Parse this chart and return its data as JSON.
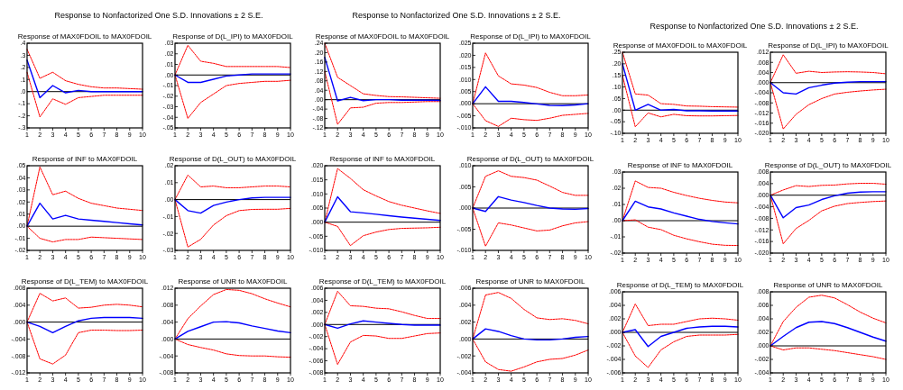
{
  "chart_data": [
    {
      "type": "line",
      "title": "Response of MAX0FDOIL to MAX0FDOIL",
      "annotations": [
        "Response to Nonfactorized One S.D. Innovations ± 2 S.E."
      ],
      "x": [
        1,
        2,
        3,
        4,
        5,
        6,
        7,
        8,
        9,
        10
      ],
      "xlim": [
        1,
        10
      ],
      "xticks": [
        1,
        2,
        3,
        4,
        5,
        6,
        7,
        8,
        9,
        10
      ],
      "ylim": [
        -0.3,
        0.4
      ],
      "yticks": [
        {
          "value": -0.3,
          "label": "-.3"
        },
        {
          "value": -0.2,
          "label": "-.2"
        },
        {
          "value": -0.1,
          "label": "-.1"
        },
        {
          "value": 0,
          "label": ".0"
        },
        {
          "value": 0.1,
          "label": ".1"
        },
        {
          "value": 0.2,
          "label": ".2"
        },
        {
          "value": 0.3,
          "label": ".3"
        },
        {
          "value": 0.4,
          "label": ".4"
        }
      ],
      "ref_lines": [
        {
          "axis": "y",
          "value": 0,
          "color": "#000000"
        }
      ],
      "series": [
        {
          "color": "#0000ff",
          "line_style": "solid",
          "values": [
            0.26,
            -0.05,
            0.05,
            -0.01,
            0.01,
            0,
            0,
            0,
            0,
            0
          ]
        },
        {
          "color": "#ff0000",
          "line_style": "dashed",
          "values": [
            0.35,
            0.11,
            0.16,
            0.09,
            0.06,
            0.04,
            0.03,
            0.03,
            0.025,
            0.02
          ]
        },
        {
          "color": "#ff0000",
          "line_style": "dashed",
          "values": [
            0.16,
            -0.21,
            -0.06,
            -0.105,
            -0.05,
            -0.04,
            -0.03,
            -0.03,
            -0.03,
            -0.03
          ]
        }
      ]
    },
    {
      "type": "line",
      "title": "Response of D(L_IPI) to MAX0FDOIL",
      "x": [
        1,
        2,
        3,
        4,
        5,
        6,
        7,
        8,
        9,
        10
      ],
      "xlim": [
        1,
        10
      ],
      "xticks": [
        1,
        2,
        3,
        4,
        5,
        6,
        7,
        8,
        9,
        10
      ],
      "ylim": [
        -0.05,
        0.03
      ],
      "yticks": [
        {
          "value": -0.05,
          "label": "-.05"
        },
        {
          "value": -0.04,
          "label": "-.04"
        },
        {
          "value": -0.03,
          "label": "-.03"
        },
        {
          "value": -0.02,
          "label": "-.02"
        },
        {
          "value": -0.01,
          "label": "-.01"
        },
        {
          "value": 0,
          "label": ".00"
        },
        {
          "value": 0.01,
          "label": ".01"
        },
        {
          "value": 0.02,
          "label": ".02"
        },
        {
          "value": 0.03,
          "label": ".03"
        }
      ],
      "ref_lines": [
        {
          "axis": "y",
          "value": 0,
          "color": "#000000"
        }
      ],
      "series": [
        {
          "color": "#0000ff",
          "line_style": "solid",
          "values": [
            0,
            -0.007,
            -0.007,
            -0.004,
            -0.001,
            0,
            0.001,
            0.001,
            0.001,
            0.001
          ]
        },
        {
          "color": "#ff0000",
          "line_style": "dashed",
          "values": [
            0,
            0.028,
            0.013,
            0.011,
            0.008,
            0.008,
            0.008,
            0.008,
            0.008,
            0.007
          ]
        },
        {
          "color": "#ff0000",
          "line_style": "dashed",
          "values": [
            0,
            -0.041,
            -0.026,
            -0.018,
            -0.01,
            -0.008,
            -0.007,
            -0.006,
            -0.006,
            -0.005
          ]
        }
      ]
    },
    {
      "type": "line",
      "title": "Response of INF to MAX0FDOIL",
      "x": [
        1,
        2,
        3,
        4,
        5,
        6,
        7,
        8,
        9,
        10
      ],
      "xlim": [
        1,
        10
      ],
      "xticks": [
        1,
        2,
        3,
        4,
        5,
        6,
        7,
        8,
        9,
        10
      ],
      "ylim": [
        -0.02,
        0.05
      ],
      "yticks": [
        {
          "value": -0.02,
          "label": "-.02"
        },
        {
          "value": -0.01,
          "label": "-.01"
        },
        {
          "value": 0,
          "label": ".00"
        },
        {
          "value": 0.01,
          "label": ".01"
        },
        {
          "value": 0.02,
          "label": ".02"
        },
        {
          "value": 0.03,
          "label": ".03"
        },
        {
          "value": 0.04,
          "label": ".04"
        },
        {
          "value": 0.05,
          "label": ".05"
        }
      ],
      "ref_lines": [
        {
          "axis": "y",
          "value": 0,
          "color": "#000000"
        }
      ],
      "series": [
        {
          "color": "#0000ff",
          "line_style": "solid",
          "values": [
            0,
            0.019,
            0.006,
            0.009,
            0.006,
            0.005,
            0.004,
            0.003,
            0.002,
            0.001
          ]
        },
        {
          "color": "#ff0000",
          "line_style": "dashed",
          "values": [
            0,
            0.049,
            0.026,
            0.029,
            0.023,
            0.019,
            0.017,
            0.015,
            0.014,
            0.013
          ]
        },
        {
          "color": "#ff0000",
          "line_style": "dashed",
          "values": [
            0,
            -0.01,
            -0.013,
            -0.011,
            -0.011,
            -0.009,
            -0.0095,
            -0.01,
            -0.0105,
            -0.011
          ]
        }
      ]
    },
    {
      "type": "line",
      "title": "Response of D(L_OUT) to MAX0FDOIL",
      "x": [
        1,
        2,
        3,
        4,
        5,
        6,
        7,
        8,
        9,
        10
      ],
      "xlim": [
        1,
        10
      ],
      "xticks": [
        1,
        2,
        3,
        4,
        5,
        6,
        7,
        8,
        9,
        10
      ],
      "ylim": [
        -0.03,
        0.02
      ],
      "yticks": [
        {
          "value": -0.03,
          "label": "-.03"
        },
        {
          "value": -0.02,
          "label": "-.02"
        },
        {
          "value": -0.01,
          "label": "-.01"
        },
        {
          "value": 0,
          "label": ".00"
        },
        {
          "value": 0.01,
          "label": ".01"
        },
        {
          "value": 0.02,
          "label": ".02"
        }
      ],
      "ref_lines": [
        {
          "axis": "y",
          "value": 0,
          "color": "#000000"
        }
      ],
      "series": [
        {
          "color": "#0000ff",
          "line_style": "solid",
          "values": [
            0,
            -0.0065,
            -0.008,
            -0.0035,
            -0.0015,
            0,
            0.001,
            0.0013,
            0.0013,
            0.0013
          ]
        },
        {
          "color": "#ff0000",
          "line_style": "dashed",
          "values": [
            0,
            0.0145,
            0.0075,
            0.008,
            0.007,
            0.007,
            0.0075,
            0.008,
            0.008,
            0.0075
          ]
        },
        {
          "color": "#ff0000",
          "line_style": "dashed",
          "values": [
            0,
            -0.028,
            -0.0235,
            -0.015,
            -0.0095,
            -0.0065,
            -0.0058,
            -0.0057,
            -0.0057,
            -0.0052
          ]
        }
      ]
    },
    {
      "type": "line",
      "title": "Response of D(L_TEM) to MAX0FDOIL",
      "x": [
        1,
        2,
        3,
        4,
        5,
        6,
        7,
        8,
        9,
        10
      ],
      "xlim": [
        1,
        10
      ],
      "xticks": [
        1,
        2,
        3,
        4,
        5,
        6,
        7,
        8,
        9,
        10
      ],
      "ylim": [
        -0.012,
        0.008
      ],
      "yticks": [
        {
          "value": -0.012,
          "label": "-.012"
        },
        {
          "value": -0.008,
          "label": "-.008"
        },
        {
          "value": -0.004,
          "label": "-.004"
        },
        {
          "value": 0,
          "label": ".000"
        },
        {
          "value": 0.004,
          "label": ".004"
        },
        {
          "value": 0.008,
          "label": ".008"
        }
      ],
      "ref_lines": [
        {
          "axis": "y",
          "value": 0,
          "color": "#000000"
        }
      ],
      "series": [
        {
          "color": "#0000ff",
          "line_style": "solid",
          "values": [
            0,
            -0.001,
            -0.0025,
            -0.001,
            0.0003,
            0.0009,
            0.0011,
            0.0011,
            0.0011,
            0.0009
          ]
        },
        {
          "color": "#ff0000",
          "line_style": "dashed",
          "values": [
            0,
            0.0068,
            0.005,
            0.0057,
            0.0033,
            0.0035,
            0.004,
            0.0042,
            0.004,
            0.0036
          ]
        },
        {
          "color": "#ff0000",
          "line_style": "dashed",
          "values": [
            0,
            -0.0087,
            -0.0099,
            -0.0078,
            -0.0025,
            -0.0019,
            -0.0019,
            -0.002,
            -0.002,
            -0.0019
          ]
        }
      ]
    },
    {
      "type": "line",
      "title": "Response of UNR to MAX0FDOIL",
      "x": [
        1,
        2,
        3,
        4,
        5,
        6,
        7,
        8,
        9,
        10
      ],
      "xlim": [
        1,
        10
      ],
      "xticks": [
        1,
        2,
        3,
        4,
        5,
        6,
        7,
        8,
        9,
        10
      ],
      "ylim": [
        -0.008,
        0.012
      ],
      "yticks": [
        {
          "value": -0.008,
          "label": "-.008"
        },
        {
          "value": -0.004,
          "label": "-.004"
        },
        {
          "value": 0,
          "label": ".000"
        },
        {
          "value": 0.004,
          "label": ".004"
        },
        {
          "value": 0.008,
          "label": ".008"
        },
        {
          "value": 0.012,
          "label": ".012"
        }
      ],
      "ref_lines": [
        {
          "axis": "y",
          "value": 0,
          "color": "#000000"
        }
      ],
      "series": [
        {
          "color": "#0000ff",
          "line_style": "solid",
          "values": [
            0,
            0.0018,
            0.0029,
            0.004,
            0.0041,
            0.0038,
            0.0031,
            0.0025,
            0.0019,
            0.0015
          ]
        },
        {
          "color": "#ff0000",
          "line_style": "dashed",
          "values": [
            0,
            0.0048,
            0.0078,
            0.0105,
            0.0117,
            0.0115,
            0.0107,
            0.0095,
            0.0085,
            0.0076
          ]
        },
        {
          "color": "#ff0000",
          "line_style": "dashed",
          "values": [
            0,
            -0.0013,
            -0.002,
            -0.0026,
            -0.0035,
            -0.0039,
            -0.004,
            -0.004,
            -0.0042,
            -0.0043
          ]
        }
      ]
    },
    {
      "type": "line",
      "title": "Response of MAX0FDOIL to MAX0FDOIL",
      "annotations": [
        "Response to Nonfactorized One S.D. Innovations ± 2 S.E."
      ],
      "x": [
        1,
        2,
        3,
        4,
        5,
        6,
        7,
        8,
        9,
        10
      ],
      "xlim": [
        1,
        10
      ],
      "xticks": [
        1,
        2,
        3,
        4,
        5,
        6,
        7,
        8,
        9,
        10
      ],
      "ylim": [
        -0.12,
        0.24
      ],
      "yticks": [
        {
          "value": -0.12,
          "label": "-.12"
        },
        {
          "value": -0.08,
          "label": "-.08"
        },
        {
          "value": -0.04,
          "label": "-.04"
        },
        {
          "value": 0,
          "label": ".00"
        },
        {
          "value": 0.04,
          "label": ".04"
        },
        {
          "value": 0.08,
          "label": ".08"
        },
        {
          "value": 0.12,
          "label": ".12"
        },
        {
          "value": 0.16,
          "label": ".16"
        },
        {
          "value": 0.2,
          "label": ".20"
        },
        {
          "value": 0.24,
          "label": ".24"
        }
      ],
      "ref_lines": [
        {
          "axis": "y",
          "value": 0,
          "color": "#000000"
        }
      ],
      "series": [
        {
          "color": "#0000ff",
          "line_style": "solid",
          "values": [
            0.18,
            -0.005,
            0.01,
            -0.004,
            0,
            0,
            -0.002,
            -0.002,
            -0.002,
            -0.003
          ]
        },
        {
          "color": "#ff0000",
          "line_style": "dashed",
          "values": [
            0.24,
            0.095,
            0.06,
            0.025,
            0.018,
            0.013,
            0.012,
            0.01,
            0.008,
            0.006
          ]
        },
        {
          "color": "#ff0000",
          "line_style": "dashed",
          "values": [
            0.12,
            -0.105,
            -0.035,
            -0.032,
            -0.015,
            -0.012,
            -0.012,
            -0.01,
            -0.008,
            -0.008
          ]
        }
      ]
    },
    {
      "type": "line",
      "title": "Response of D(L_IPI) to MAX0FDOIL",
      "x": [
        1,
        2,
        3,
        4,
        5,
        6,
        7,
        8,
        9,
        10
      ],
      "xlim": [
        1,
        10
      ],
      "xticks": [
        1,
        2,
        3,
        4,
        5,
        6,
        7,
        8,
        9,
        10
      ],
      "ylim": [
        -0.01,
        0.025
      ],
      "yticks": [
        {
          "value": -0.01,
          "label": "-.010"
        },
        {
          "value": -0.005,
          "label": "-.005"
        },
        {
          "value": 0,
          "label": ".000"
        },
        {
          "value": 0.005,
          "label": ".005"
        },
        {
          "value": 0.01,
          "label": ".010"
        },
        {
          "value": 0.015,
          "label": ".015"
        },
        {
          "value": 0.02,
          "label": ".020"
        },
        {
          "value": 0.025,
          "label": ".025"
        }
      ],
      "ref_lines": [
        {
          "axis": "y",
          "value": 0,
          "color": "#000000"
        }
      ],
      "series": [
        {
          "color": "#0000ff",
          "line_style": "solid",
          "values": [
            0,
            0.007,
            0.001,
            0.001,
            0.0005,
            -0.0001,
            -0.0007,
            -0.0008,
            -0.0005,
            0
          ]
        },
        {
          "color": "#ff0000",
          "line_style": "dashed",
          "values": [
            0,
            0.021,
            0.0115,
            0.0082,
            0.0077,
            0.0067,
            0.0047,
            0.0033,
            0.0033,
            0.0036
          ]
        },
        {
          "color": "#ff0000",
          "line_style": "dashed",
          "values": [
            0,
            -0.007,
            -0.0094,
            -0.006,
            -0.0066,
            -0.0069,
            -0.006,
            -0.0048,
            -0.0044,
            -0.004
          ]
        }
      ]
    },
    {
      "type": "line",
      "title": "Response of INF to MAX0FDOIL",
      "x": [
        1,
        2,
        3,
        4,
        5,
        6,
        7,
        8,
        9,
        10
      ],
      "xlim": [
        1,
        10
      ],
      "xticks": [
        1,
        2,
        3,
        4,
        5,
        6,
        7,
        8,
        9,
        10
      ],
      "ylim": [
        -0.01,
        0.02
      ],
      "yticks": [
        {
          "value": -0.01,
          "label": "-.010"
        },
        {
          "value": -0.005,
          "label": "-.005"
        },
        {
          "value": 0,
          "label": ".000"
        },
        {
          "value": 0.005,
          "label": ".005"
        },
        {
          "value": 0.01,
          "label": ".010"
        },
        {
          "value": 0.015,
          "label": ".015"
        },
        {
          "value": 0.02,
          "label": ".020"
        }
      ],
      "ref_lines": [
        {
          "axis": "y",
          "value": 0,
          "color": "#000000"
        }
      ],
      "series": [
        {
          "color": "#0000ff",
          "line_style": "solid",
          "values": [
            0,
            0.009,
            0.0037,
            0.0033,
            0.0028,
            0.0023,
            0.0018,
            0.0014,
            0.001,
            0.0006
          ]
        },
        {
          "color": "#ff0000",
          "line_style": "dashed",
          "values": [
            0,
            0.019,
            0.0155,
            0.0115,
            0.0093,
            0.0073,
            0.006,
            0.005,
            0.004,
            0.0031
          ]
        },
        {
          "color": "#ff0000",
          "line_style": "dashed",
          "values": [
            0,
            -0.0015,
            -0.0083,
            -0.0048,
            -0.0035,
            -0.0026,
            -0.0022,
            -0.0021,
            -0.002,
            -0.0018
          ]
        }
      ]
    },
    {
      "type": "line",
      "title": "Response of D(L_OUT) to MAX0FDOIL",
      "x": [
        1,
        2,
        3,
        4,
        5,
        6,
        7,
        8,
        9,
        10
      ],
      "xlim": [
        1,
        10
      ],
      "xticks": [
        1,
        2,
        3,
        4,
        5,
        6,
        7,
        8,
        9,
        10
      ],
      "ylim": [
        -0.01,
        0.01
      ],
      "yticks": [
        {
          "value": -0.01,
          "label": "-.010"
        },
        {
          "value": -0.005,
          "label": "-.005"
        },
        {
          "value": 0,
          "label": ".000"
        },
        {
          "value": 0.005,
          "label": ".005"
        },
        {
          "value": 0.01,
          "label": ".010"
        }
      ],
      "ref_lines": [
        {
          "axis": "y",
          "value": 0,
          "color": "#000000"
        }
      ],
      "series": [
        {
          "color": "#0000ff",
          "line_style": "solid",
          "values": [
            0,
            -0.0008,
            0.0027,
            0.0019,
            0.0013,
            0.0006,
            0,
            -0.0002,
            -0.0003,
            -0.0001
          ]
        },
        {
          "color": "#ff0000",
          "line_style": "dashed",
          "values": [
            0,
            0.0075,
            0.0088,
            0.0075,
            0.0072,
            0.0066,
            0.0052,
            0.0037,
            0.003,
            0.003
          ]
        },
        {
          "color": "#ff0000",
          "line_style": "dashed",
          "values": [
            0,
            -0.009,
            -0.0035,
            -0.004,
            -0.0047,
            -0.0054,
            -0.0052,
            -0.0042,
            -0.0035,
            -0.0032
          ]
        }
      ]
    },
    {
      "type": "line",
      "title": "Response of D(L_TEM) to MAX0FDOIL",
      "x": [
        1,
        2,
        3,
        4,
        5,
        6,
        7,
        8,
        9,
        10
      ],
      "xlim": [
        1,
        10
      ],
      "xticks": [
        1,
        2,
        3,
        4,
        5,
        6,
        7,
        8,
        9,
        10
      ],
      "ylim": [
        -0.008,
        0.006
      ],
      "yticks": [
        {
          "value": -0.008,
          "label": "-.008"
        },
        {
          "value": -0.006,
          "label": "-.006"
        },
        {
          "value": -0.004,
          "label": "-.004"
        },
        {
          "value": -0.002,
          "label": "-.002"
        },
        {
          "value": 0,
          "label": ".000"
        },
        {
          "value": 0.002,
          "label": ".002"
        },
        {
          "value": 0.004,
          "label": ".004"
        },
        {
          "value": 0.006,
          "label": ".006"
        }
      ],
      "ref_lines": [
        {
          "axis": "y",
          "value": 0,
          "color": "#000000"
        }
      ],
      "series": [
        {
          "color": "#0000ff",
          "line_style": "solid",
          "values": [
            0,
            -0.0006,
            0.0001,
            0.0006,
            0.0004,
            0.0002,
            0,
            -0.0001,
            -0.0001,
            -0.0001
          ]
        },
        {
          "color": "#ff0000",
          "line_style": "dashed",
          "values": [
            0,
            0.0055,
            0.0031,
            0.003,
            0.0027,
            0.0026,
            0.0021,
            0.0015,
            0.001,
            0.001
          ]
        },
        {
          "color": "#ff0000",
          "line_style": "dashed",
          "values": [
            0,
            -0.0066,
            -0.0029,
            -0.0018,
            -0.0019,
            -0.0023,
            -0.0023,
            -0.0019,
            -0.0015,
            -0.0014
          ]
        }
      ]
    },
    {
      "type": "line",
      "title": "Response of UNR to MAX0FDOIL",
      "x": [
        1,
        2,
        3,
        4,
        5,
        6,
        7,
        8,
        9,
        10
      ],
      "xlim": [
        1,
        10
      ],
      "xticks": [
        1,
        2,
        3,
        4,
        5,
        6,
        7,
        8,
        9,
        10
      ],
      "ylim": [
        -0.004,
        0.006
      ],
      "yticks": [
        {
          "value": -0.004,
          "label": "-.004"
        },
        {
          "value": -0.002,
          "label": "-.002"
        },
        {
          "value": 0,
          "label": ".000"
        },
        {
          "value": 0.002,
          "label": ".002"
        },
        {
          "value": 0.004,
          "label": ".004"
        },
        {
          "value": 0.006,
          "label": ".006"
        }
      ],
      "ref_lines": [
        {
          "axis": "y",
          "value": 0,
          "color": "#000000"
        }
      ],
      "series": [
        {
          "color": "#0000ff",
          "line_style": "solid",
          "values": [
            0,
            0.0012,
            0.0009,
            0.0004,
            0,
            -0.0001,
            -0.0001,
            0,
            0.0002,
            0.0003
          ]
        },
        {
          "color": "#ff0000",
          "line_style": "dashed",
          "values": [
            0,
            0.0052,
            0.0055,
            0.0048,
            0.0035,
            0.0025,
            0.0023,
            0.0024,
            0.0022,
            0.0018
          ]
        },
        {
          "color": "#ff0000",
          "line_style": "dashed",
          "values": [
            0,
            -0.0027,
            -0.0036,
            -0.0038,
            -0.0033,
            -0.0027,
            -0.0024,
            -0.0023,
            -0.0019,
            -0.0013
          ]
        }
      ]
    },
    {
      "type": "line",
      "title": "Response of MAX0FDOIL to MAX0FDOIL",
      "annotations": [
        "Response to Nonfactorized One S.D. Innovations ± 2 S.E."
      ],
      "x": [
        1,
        2,
        3,
        4,
        5,
        6,
        7,
        8,
        9,
        10
      ],
      "xlim": [
        1,
        10
      ],
      "xticks": [
        1,
        2,
        3,
        4,
        5,
        6,
        7,
        8,
        9,
        10
      ],
      "ylim": [
        -0.1,
        0.25
      ],
      "yticks": [
        {
          "value": -0.1,
          "label": "-.10"
        },
        {
          "value": -0.05,
          "label": "-.05"
        },
        {
          "value": 0,
          "label": ".00"
        },
        {
          "value": 0.05,
          "label": ".05"
        },
        {
          "value": 0.1,
          "label": ".10"
        },
        {
          "value": 0.15,
          "label": ".15"
        },
        {
          "value": 0.2,
          "label": ".20"
        },
        {
          "value": 0.25,
          "label": ".25"
        }
      ],
      "ref_lines": [
        {
          "axis": "y",
          "value": 0,
          "color": "#000000"
        }
      ],
      "series": [
        {
          "color": "#0000ff",
          "line_style": "solid",
          "values": [
            0.2,
            0,
            0.025,
            0,
            0.003,
            -0.003,
            -0.003,
            -0.004,
            -0.004,
            -0.004
          ]
        },
        {
          "color": "#ff0000",
          "line_style": "dashed",
          "values": [
            0.25,
            0.07,
            0.065,
            0.028,
            0.025,
            0.018,
            0.017,
            0.015,
            0.014,
            0.013
          ]
        },
        {
          "color": "#ff0000",
          "line_style": "dashed",
          "values": [
            0.15,
            -0.072,
            -0.012,
            -0.029,
            -0.018,
            -0.024,
            -0.025,
            -0.025,
            -0.024,
            -0.023
          ]
        }
      ]
    },
    {
      "type": "line",
      "title": "Response of D(L_IPI) to MAX0FDOIL",
      "x": [
        1,
        2,
        3,
        4,
        5,
        6,
        7,
        8,
        9,
        10
      ],
      "xlim": [
        1,
        10
      ],
      "xticks": [
        1,
        2,
        3,
        4,
        5,
        6,
        7,
        8,
        9,
        10
      ],
      "ylim": [
        -0.02,
        0.012
      ],
      "yticks": [
        {
          "value": -0.02,
          "label": "-.020"
        },
        {
          "value": -0.016,
          "label": "-.016"
        },
        {
          "value": -0.012,
          "label": "-.012"
        },
        {
          "value": -0.008,
          "label": "-.008"
        },
        {
          "value": -0.004,
          "label": "-.004"
        },
        {
          "value": 0,
          "label": ".000"
        },
        {
          "value": 0.004,
          "label": ".004"
        },
        {
          "value": 0.008,
          "label": ".008"
        },
        {
          "value": 0.012,
          "label": ".012"
        }
      ],
      "ref_lines": [
        {
          "axis": "y",
          "value": 0,
          "color": "#000000"
        }
      ],
      "series": [
        {
          "color": "#0000ff",
          "line_style": "solid",
          "values": [
            0,
            -0.004,
            -0.0045,
            -0.002,
            -0.001,
            -0.0002,
            0.0002,
            0.0004,
            0.0004,
            0.0004
          ]
        },
        {
          "color": "#ff0000",
          "line_style": "dashed",
          "values": [
            0,
            0.011,
            0.0037,
            0.0045,
            0.004,
            0.0042,
            0.0043,
            0.0042,
            0.004,
            0.0035
          ]
        },
        {
          "color": "#ff0000",
          "line_style": "dashed",
          "values": [
            0,
            -0.0183,
            -0.0125,
            -0.0087,
            -0.0063,
            -0.0045,
            -0.0038,
            -0.0033,
            -0.0029,
            -0.0026
          ]
        }
      ]
    },
    {
      "type": "line",
      "title": "Response of INF to MAX0FDOIL",
      "x": [
        1,
        2,
        3,
        4,
        5,
        6,
        7,
        8,
        9,
        10
      ],
      "xlim": [
        1,
        10
      ],
      "xticks": [
        1,
        2,
        3,
        4,
        5,
        6,
        7,
        8,
        9,
        10
      ],
      "ylim": [
        -0.02,
        0.03
      ],
      "yticks": [
        {
          "value": -0.02,
          "label": "-.02"
        },
        {
          "value": -0.01,
          "label": "-.01"
        },
        {
          "value": 0,
          "label": ".00"
        },
        {
          "value": 0.01,
          "label": ".01"
        },
        {
          "value": 0.02,
          "label": ".02"
        },
        {
          "value": 0.03,
          "label": ".03"
        }
      ],
      "ref_lines": [
        {
          "axis": "y",
          "value": 0,
          "color": "#000000"
        }
      ],
      "series": [
        {
          "color": "#0000ff",
          "line_style": "solid",
          "values": [
            0,
            0.012,
            0.0085,
            0.0072,
            0.0048,
            0.0028,
            0.0008,
            -0.0005,
            -0.0013,
            -0.002
          ]
        },
        {
          "color": "#ff0000",
          "line_style": "dashed",
          "values": [
            0,
            0.0245,
            0.0205,
            0.02,
            0.0175,
            0.0155,
            0.0138,
            0.0125,
            0.0115,
            0.011
          ]
        },
        {
          "color": "#ff0000",
          "line_style": "dashed",
          "values": [
            0,
            0.0005,
            -0.004,
            -0.0055,
            -0.009,
            -0.0112,
            -0.013,
            -0.0145,
            -0.0152,
            -0.0153
          ]
        }
      ]
    },
    {
      "type": "line",
      "title": "Response of D(L_OUT) to MAX0FDOIL",
      "x": [
        1,
        2,
        3,
        4,
        5,
        6,
        7,
        8,
        9,
        10
      ],
      "xlim": [
        1,
        10
      ],
      "xticks": [
        1,
        2,
        3,
        4,
        5,
        6,
        7,
        8,
        9,
        10
      ],
      "ylim": [
        -0.02,
        0.008
      ],
      "yticks": [
        {
          "value": -0.02,
          "label": "-.020"
        },
        {
          "value": -0.016,
          "label": "-.016"
        },
        {
          "value": -0.012,
          "label": "-.012"
        },
        {
          "value": -0.008,
          "label": "-.008"
        },
        {
          "value": -0.004,
          "label": "-.004"
        },
        {
          "value": 0,
          "label": ".000"
        },
        {
          "value": 0.004,
          "label": ".004"
        },
        {
          "value": 0.008,
          "label": ".008"
        }
      ],
      "ref_lines": [
        {
          "axis": "y",
          "value": 0,
          "color": "#000000"
        }
      ],
      "series": [
        {
          "color": "#0000ff",
          "line_style": "solid",
          "values": [
            0,
            -0.0078,
            -0.0043,
            -0.0034,
            -0.0015,
            -0.0002,
            0.0007,
            0.0011,
            0.0012,
            0.0012
          ]
        },
        {
          "color": "#ff0000",
          "line_style": "dashed",
          "values": [
            0,
            0.0018,
            0.0033,
            0.003,
            0.0034,
            0.0035,
            0.0039,
            0.0041,
            0.0041,
            0.0038
          ]
        },
        {
          "color": "#ff0000",
          "line_style": "dashed",
          "values": [
            0,
            -0.0168,
            -0.0115,
            -0.0087,
            -0.0054,
            -0.0038,
            -0.0029,
            -0.0025,
            -0.0022,
            -0.002
          ]
        }
      ]
    },
    {
      "type": "line",
      "title": "Response of D(L_TEM) to MAX0FDOIL",
      "x": [
        1,
        2,
        3,
        4,
        5,
        6,
        7,
        8,
        9,
        10
      ],
      "xlim": [
        1,
        10
      ],
      "xticks": [
        1,
        2,
        3,
        4,
        5,
        6,
        7,
        8,
        9,
        10
      ],
      "ylim": [
        -0.006,
        0.006
      ],
      "yticks": [
        {
          "value": -0.006,
          "label": "-.006"
        },
        {
          "value": -0.004,
          "label": "-.004"
        },
        {
          "value": -0.002,
          "label": "-.002"
        },
        {
          "value": 0,
          "label": ".000"
        },
        {
          "value": 0.002,
          "label": ".002"
        },
        {
          "value": 0.004,
          "label": ".004"
        },
        {
          "value": 0.006,
          "label": ".006"
        }
      ],
      "ref_lines": [
        {
          "axis": "y",
          "value": 0,
          "color": "#000000"
        }
      ],
      "series": [
        {
          "color": "#0000ff",
          "line_style": "solid",
          "values": [
            0,
            0.0004,
            -0.0021,
            -0.0006,
            0,
            0.0006,
            0.0008,
            0.0009,
            0.0009,
            0.0008
          ]
        },
        {
          "color": "#ff0000",
          "line_style": "dashed",
          "values": [
            0,
            0.0042,
            0.001,
            0.0012,
            0.0012,
            0.0016,
            0.002,
            0.0021,
            0.002,
            0.0018
          ]
        },
        {
          "color": "#ff0000",
          "line_style": "dashed",
          "values": [
            0,
            -0.0035,
            -0.0052,
            -0.0026,
            -0.0014,
            -0.0006,
            -0.0004,
            -0.0004,
            -0.0004,
            -0.0003
          ]
        }
      ]
    },
    {
      "type": "line",
      "title": "Response of UNR to MAX0FDOIL",
      "x": [
        1,
        2,
        3,
        4,
        5,
        6,
        7,
        8,
        9,
        10
      ],
      "xlim": [
        1,
        10
      ],
      "xticks": [
        1,
        2,
        3,
        4,
        5,
        6,
        7,
        8,
        9,
        10
      ],
      "ylim": [
        -0.004,
        0.008
      ],
      "yticks": [
        {
          "value": -0.004,
          "label": "-.004"
        },
        {
          "value": -0.002,
          "label": "-.002"
        },
        {
          "value": 0,
          "label": ".000"
        },
        {
          "value": 0.002,
          "label": ".002"
        },
        {
          "value": 0.004,
          "label": ".004"
        },
        {
          "value": 0.006,
          "label": ".006"
        },
        {
          "value": 0.008,
          "label": ".008"
        }
      ],
      "ref_lines": [
        {
          "axis": "y",
          "value": 0,
          "color": "#000000"
        }
      ],
      "series": [
        {
          "color": "#0000ff",
          "line_style": "solid",
          "values": [
            0,
            0.0014,
            0.0027,
            0.0035,
            0.0036,
            0.0033,
            0.0027,
            0.002,
            0.0013,
            0.0007
          ]
        },
        {
          "color": "#ff0000",
          "line_style": "dashed",
          "values": [
            0,
            0.0036,
            0.0057,
            0.0072,
            0.0075,
            0.0071,
            0.0061,
            0.005,
            0.0041,
            0.0034
          ]
        },
        {
          "color": "#ff0000",
          "line_style": "dashed",
          "values": [
            0,
            -0.0006,
            -0.0003,
            -0.0003,
            -0.0005,
            -0.0007,
            -0.001,
            -0.0013,
            -0.0016,
            -0.002
          ]
        }
      ]
    }
  ]
}
